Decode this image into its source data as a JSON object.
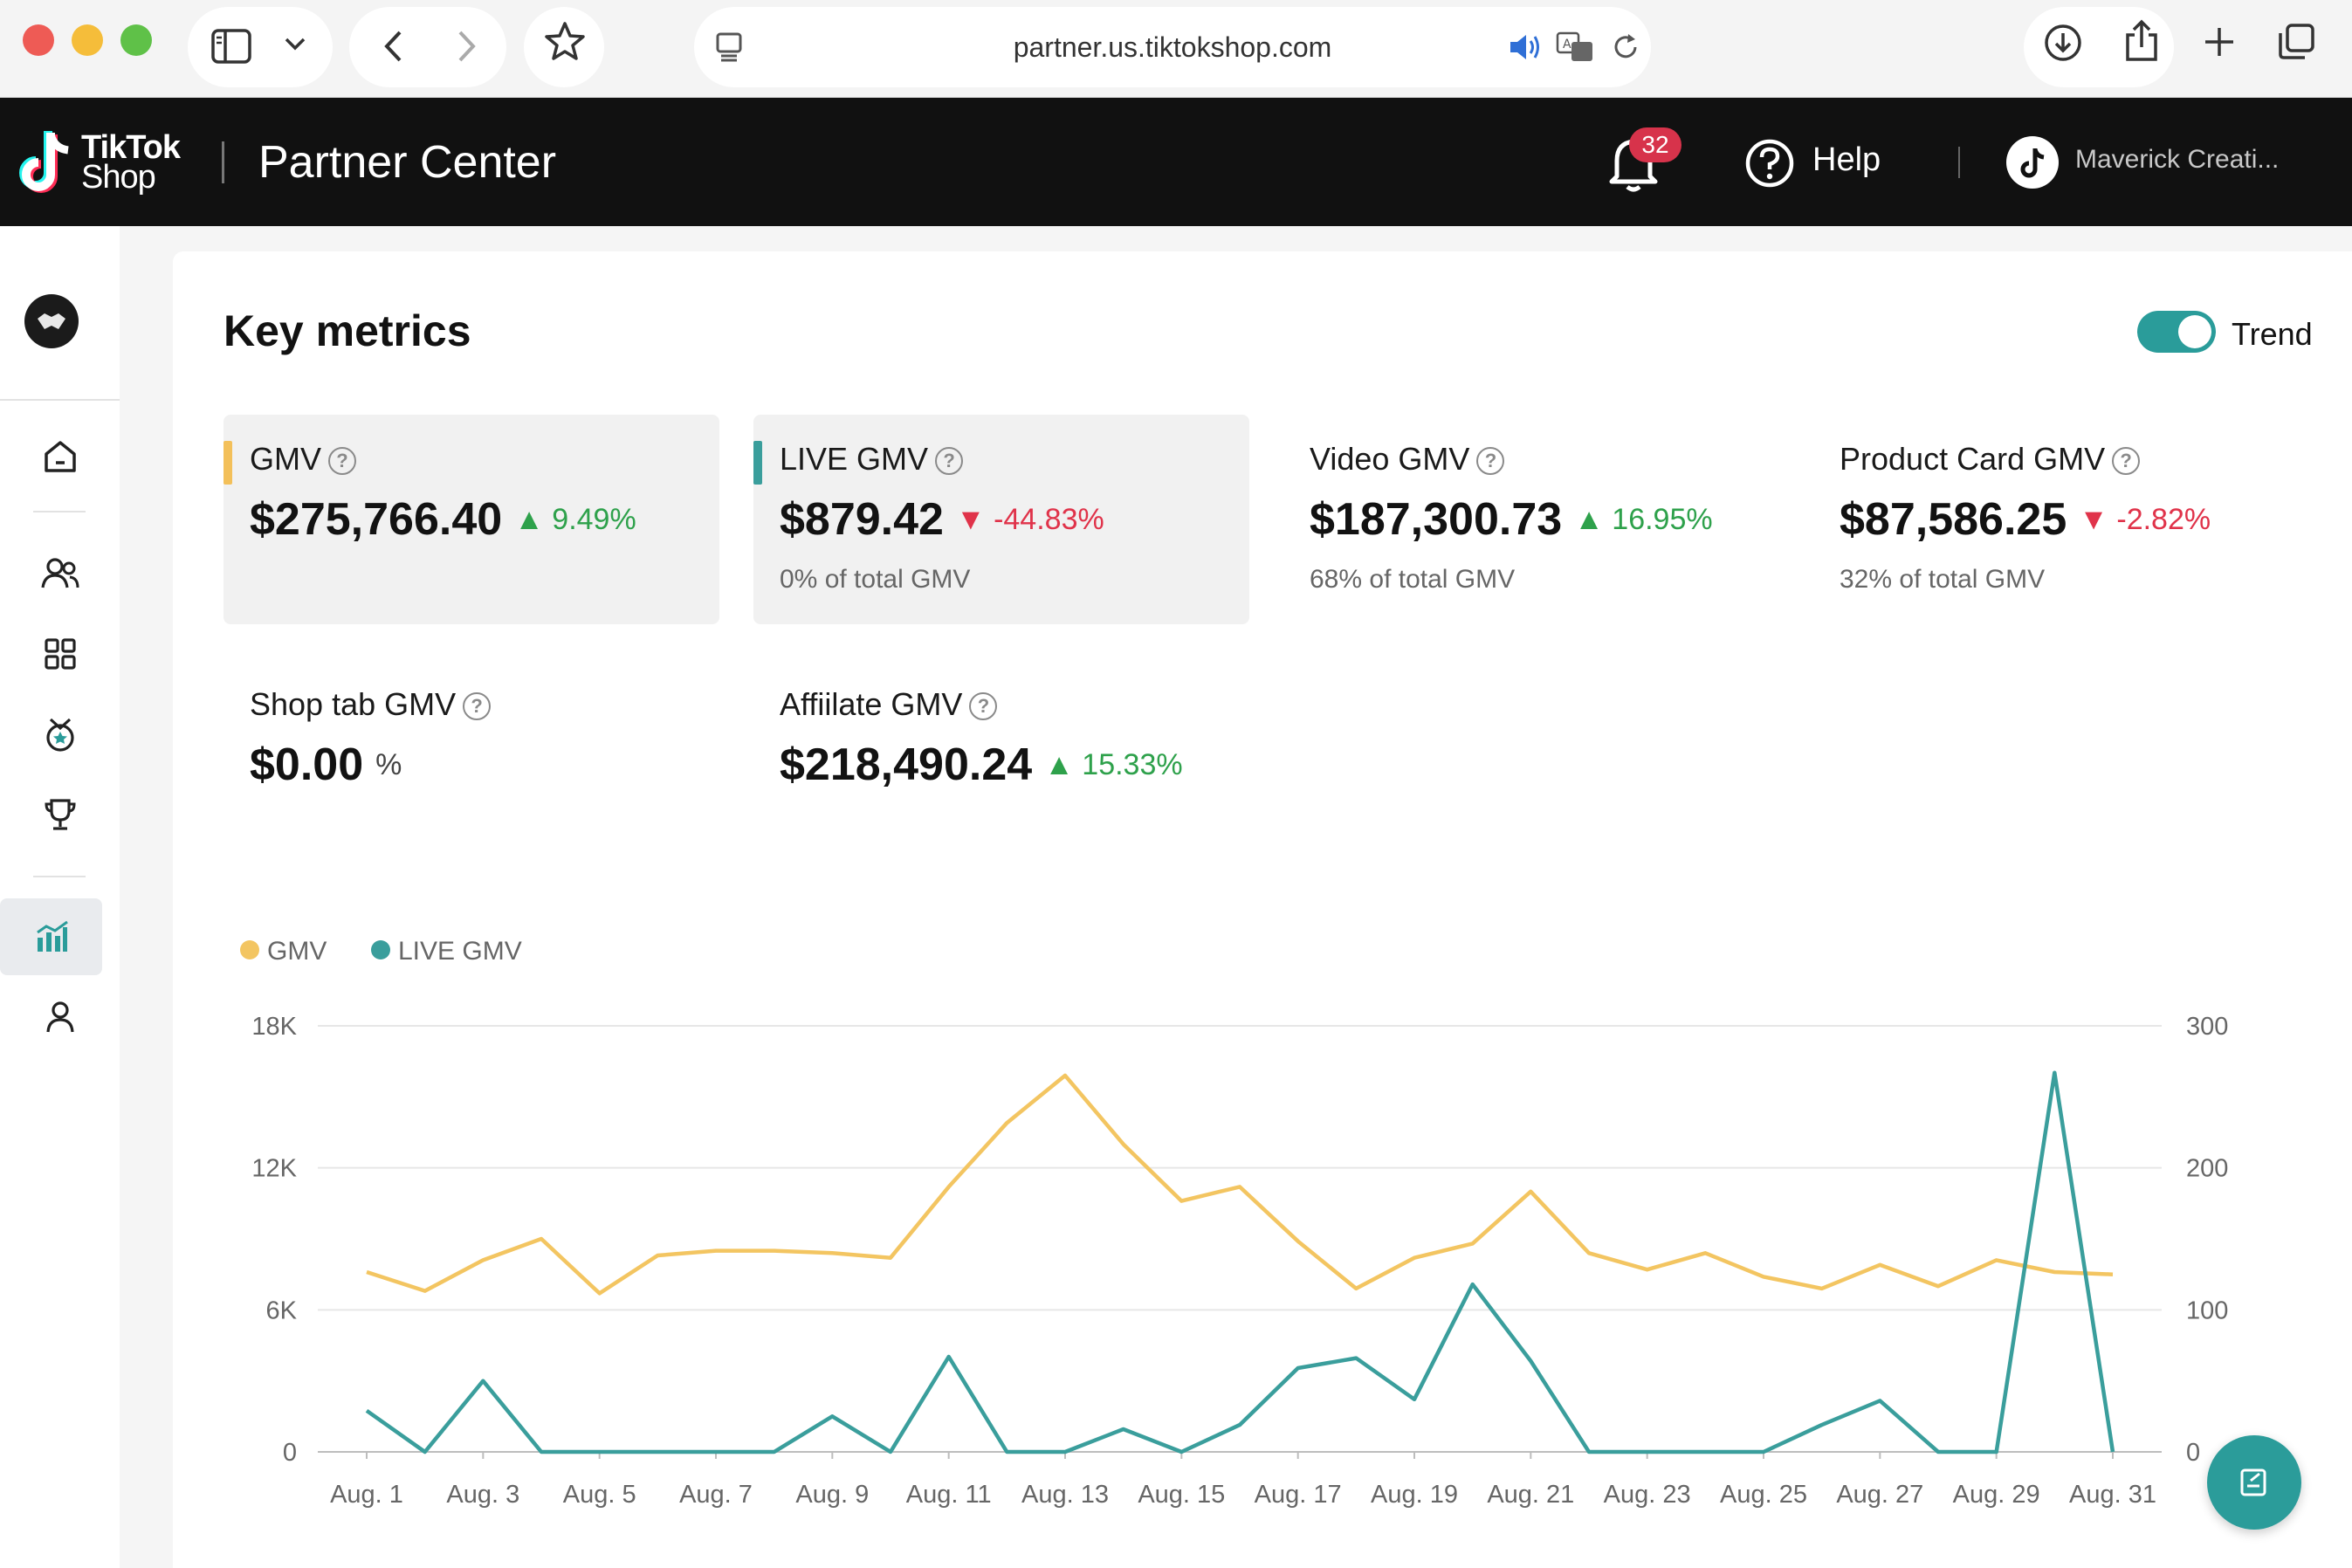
{
  "browser": {
    "url": "partner.us.tiktokshop.com"
  },
  "header": {
    "brand_line1": "TikTok",
    "brand_line2": "Shop",
    "title": "Partner Center",
    "notification_count": "32",
    "help_label": "Help",
    "account_name": "Maverick Creati..."
  },
  "sidebar": {
    "items": [
      {
        "name": "home",
        "icon": "home-icon"
      },
      {
        "name": "creators",
        "icon": "users-icon"
      },
      {
        "name": "apps",
        "icon": "grid-icon"
      },
      {
        "name": "campaigns",
        "icon": "medal-icon"
      },
      {
        "name": "rewards",
        "icon": "trophy-icon"
      },
      {
        "name": "analytics",
        "icon": "bar-chart-icon",
        "active": true
      },
      {
        "name": "account",
        "icon": "person-icon"
      }
    ]
  },
  "main": {
    "title": "Key metrics",
    "trend_label": "Trend",
    "trend_on": true,
    "metrics": [
      {
        "label": "GMV",
        "value": "$275,766.40",
        "change": "9.49%",
        "direction": "up",
        "sub": "",
        "selected": true,
        "accent": "#f3c05a"
      },
      {
        "label": "LIVE GMV",
        "value": "$879.42",
        "change": "-44.83%",
        "direction": "down",
        "sub": "0% of total GMV",
        "selected": true,
        "accent": "#3a9e9c"
      },
      {
        "label": "Video GMV",
        "value": "$187,300.73",
        "change": "16.95%",
        "direction": "up",
        "sub": "68% of total GMV",
        "selected": false
      },
      {
        "label": "Product Card GMV",
        "value": "$87,586.25",
        "change": "-2.82%",
        "direction": "down",
        "sub": "32% of total GMV",
        "selected": false
      },
      {
        "label": "Shop tab GMV",
        "value": "$0.00",
        "change": "%",
        "direction": "neutral",
        "sub": "",
        "selected": false
      },
      {
        "label": "Affiilate GMV",
        "value": "$218,490.24",
        "change": "15.33%",
        "direction": "up",
        "sub": "",
        "selected": false
      }
    ]
  },
  "colors": {
    "gmv": "#f3c561",
    "live_gmv": "#3a9e9c",
    "up": "#2ea14b",
    "down": "#e0334a"
  },
  "chart_data": {
    "type": "line",
    "legend_position": "top-left",
    "grid": true,
    "x": [
      "Aug. 1",
      "Aug. 2",
      "Aug. 3",
      "Aug. 4",
      "Aug. 5",
      "Aug. 6",
      "Aug. 7",
      "Aug. 8",
      "Aug. 9",
      "Aug. 10",
      "Aug. 11",
      "Aug. 12",
      "Aug. 13",
      "Aug. 14",
      "Aug. 15",
      "Aug. 16",
      "Aug. 17",
      "Aug. 18",
      "Aug. 19",
      "Aug. 20",
      "Aug. 21",
      "Aug. 22",
      "Aug. 23",
      "Aug. 24",
      "Aug. 25",
      "Aug. 26",
      "Aug. 27",
      "Aug. 28",
      "Aug. 29",
      "Aug. 30",
      "Aug. 31"
    ],
    "x_tick_labels": [
      "Aug. 1",
      "Aug. 3",
      "Aug. 5",
      "Aug. 7",
      "Aug. 9",
      "Aug. 11",
      "Aug. 13",
      "Aug. 15",
      "Aug. 17",
      "Aug. 19",
      "Aug. 21",
      "Aug. 23",
      "Aug. 25",
      "Aug. 27",
      "Aug. 29",
      "Aug. 31"
    ],
    "y_left": {
      "ticks": [
        0,
        6000,
        12000,
        18000
      ],
      "tick_labels": [
        "0",
        "6K",
        "12K",
        "18K"
      ],
      "ylim": [
        0,
        18000
      ]
    },
    "y_right": {
      "ticks": [
        0,
        100,
        200,
        300
      ],
      "tick_labels": [
        "0",
        "100",
        "200",
        "300"
      ],
      "ylim": [
        0,
        300
      ]
    },
    "series": [
      {
        "name": "GMV",
        "axis": "left",
        "color": "#f3c561",
        "values": [
          7600,
          6800,
          8100,
          9000,
          6700,
          8300,
          8500,
          8500,
          8400,
          8200,
          11200,
          13900,
          15900,
          13000,
          10600,
          11200,
          8900,
          6900,
          8200,
          8800,
          11000,
          8400,
          7700,
          8400,
          7400,
          6900,
          7900,
          7000,
          8100,
          7600,
          7500
        ]
      },
      {
        "name": "LIVE GMV",
        "axis": "right",
        "color": "#3a9e9c",
        "values": [
          29,
          0,
          50,
          0,
          0,
          0,
          0,
          0,
          25,
          0,
          67,
          0,
          0,
          16,
          0,
          19,
          59,
          66,
          37,
          118,
          64,
          0,
          0,
          0,
          0,
          19,
          36,
          0,
          0,
          267,
          0
        ]
      }
    ]
  }
}
